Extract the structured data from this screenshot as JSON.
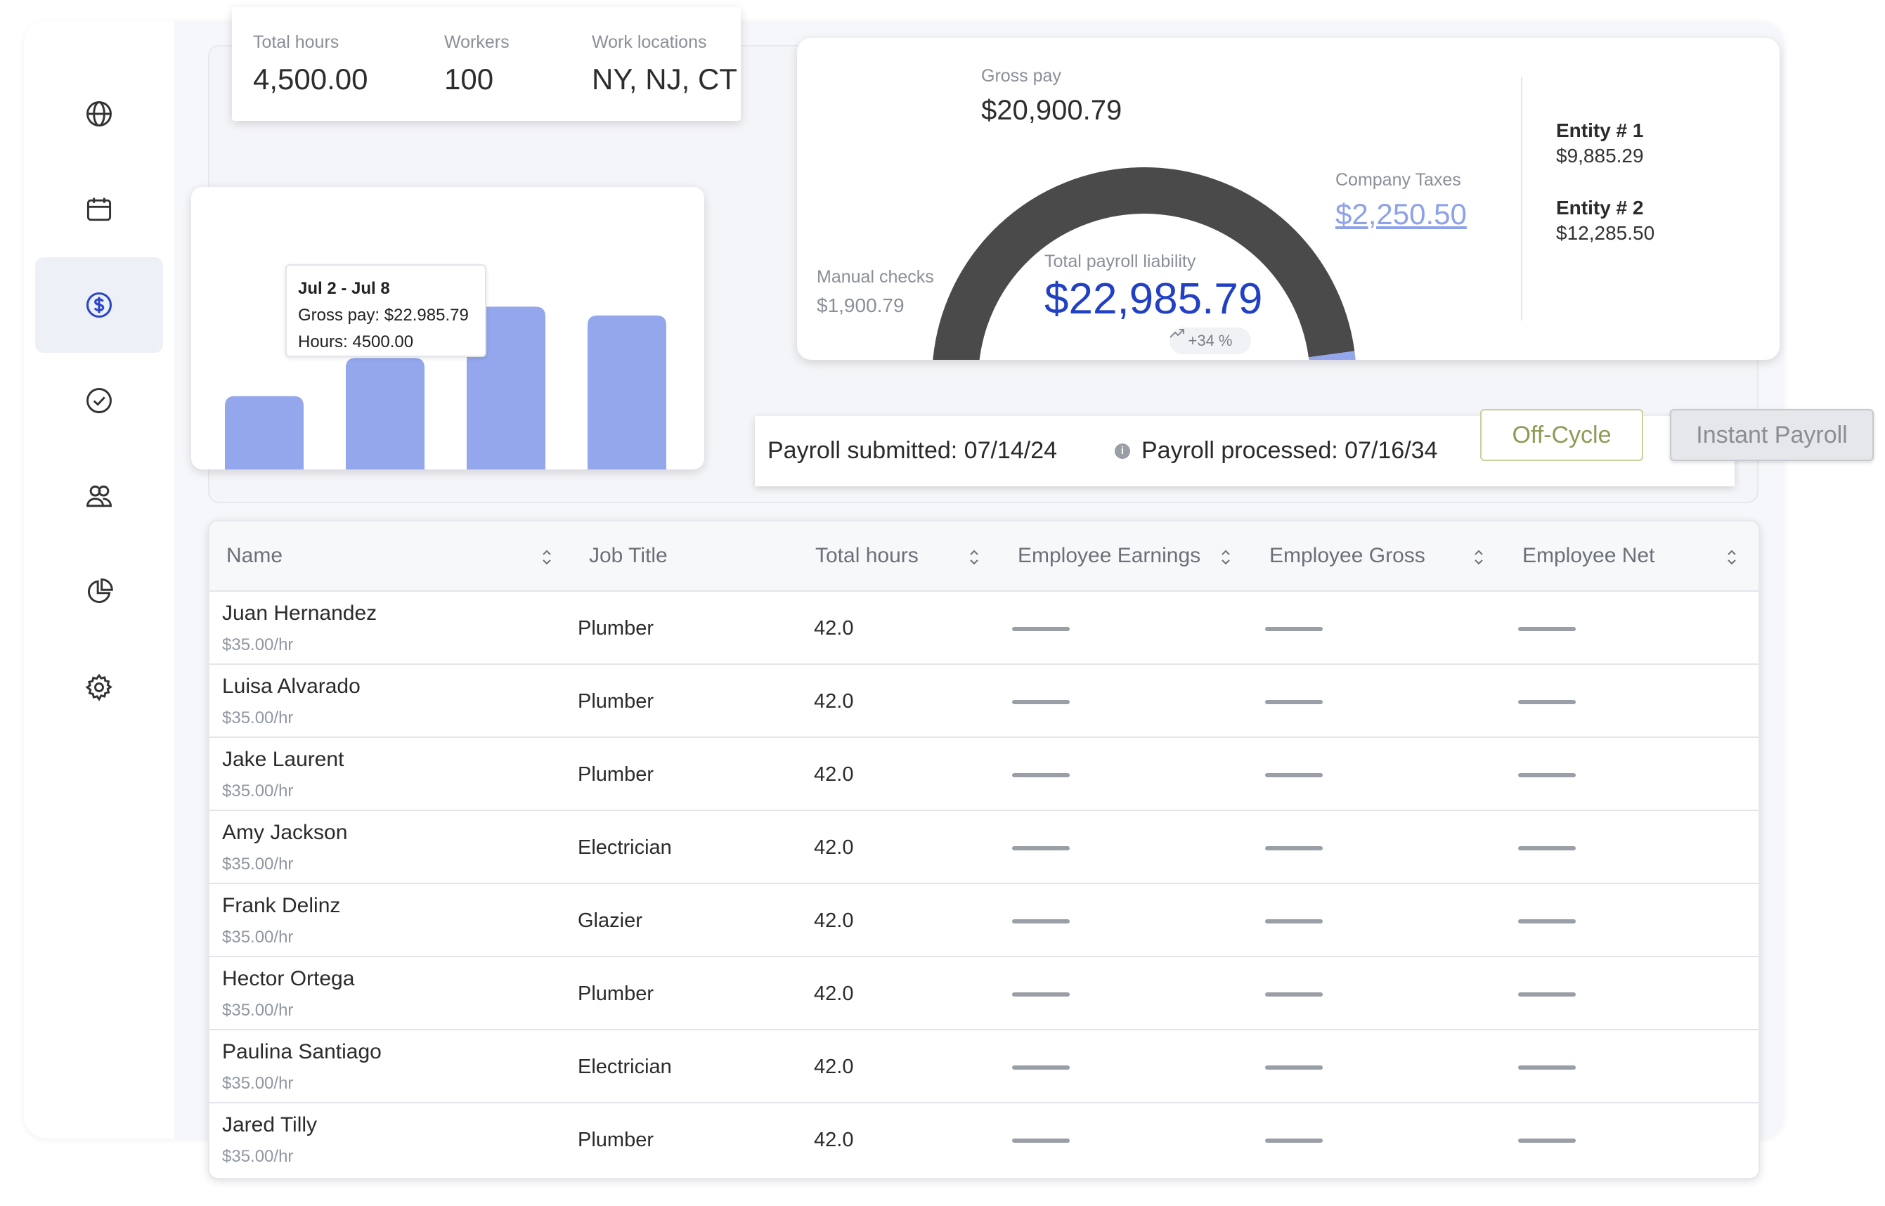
{
  "sidebar": {
    "items": [
      {
        "icon": "globe-icon",
        "active": false
      },
      {
        "icon": "calendar-icon",
        "active": false
      },
      {
        "icon": "dollar-icon",
        "active": true
      },
      {
        "icon": "check-circle-icon",
        "active": false
      },
      {
        "icon": "users-icon",
        "active": false
      },
      {
        "icon": "pie-chart-icon",
        "active": false
      },
      {
        "icon": "gear-icon",
        "active": false
      }
    ]
  },
  "stats": {
    "total_hours_label": "Total hours",
    "total_hours": "4,500.00",
    "workers_label": "Workers",
    "workers": "100",
    "locations_label": "Work locations",
    "locations": "NY, NJ, CT"
  },
  "bar_chart": {
    "tooltip": {
      "title": "Jul 2 - Jul 8",
      "gross_pay": "Gross pay: $22.985.79",
      "hours": "Hours: 4500.00"
    }
  },
  "chart_data": {
    "type": "bar",
    "categories": [
      "",
      "",
      "",
      ""
    ],
    "values": [
      1.0,
      1.52,
      2.22,
      2.1
    ],
    "title": "",
    "xlabel": "",
    "ylabel": "",
    "ylim": [
      0,
      2.3
    ],
    "grid": false,
    "color": "#94a6ec"
  },
  "payroll_summary": {
    "gross_pay_label": "Gross pay",
    "gross_pay": "$20,900.79",
    "company_taxes_label": "Company Taxes",
    "company_taxes": "$2,250.50",
    "manual_checks_label": "Manual checks",
    "manual_checks": "$1,900.79",
    "total_liability_label": "Total payroll liability",
    "total_liability": "$22,985.79",
    "trend": "+34 %",
    "segments": [
      {
        "name": "Manual checks",
        "value": 1900.79,
        "color": "#8a8a8a"
      },
      {
        "name": "Gross pay",
        "value": 20900.79,
        "color": "#4a4a4a"
      },
      {
        "name": "Company Taxes",
        "value": 2250.5,
        "color": "#94a6ec"
      }
    ],
    "entities": [
      {
        "name": "Entity # 1",
        "value": "$9,885.29"
      },
      {
        "name": "Entity # 2",
        "value": "$12,285.50"
      }
    ]
  },
  "status": {
    "submitted": "Payroll submitted: 07/14/24",
    "processed": "Payroll processed: 07/16/34",
    "info_glyph": "i"
  },
  "actions": {
    "off_cycle": "Off-Cycle",
    "instant_payroll": "Instant Payroll"
  },
  "table": {
    "headers": {
      "name": "Name",
      "job_title": "Job Title",
      "total_hours": "Total hours",
      "earnings": "Employee Earnings",
      "gross": "Employee Gross",
      "net": "Employee Net"
    },
    "rows": [
      {
        "name": "Juan Hernandez",
        "rate": "$35.00/hr",
        "job": "Plumber",
        "hours": "42.0"
      },
      {
        "name": "Luisa Alvarado",
        "rate": "$35.00/hr",
        "job": "Plumber",
        "hours": "42.0"
      },
      {
        "name": "Jake Laurent",
        "rate": "$35.00/hr",
        "job": "Plumber",
        "hours": "42.0"
      },
      {
        "name": "Amy Jackson",
        "rate": "$35.00/hr",
        "job": "Electrician",
        "hours": "42.0"
      },
      {
        "name": "Frank Delinz",
        "rate": "$35.00/hr",
        "job": "Glazier",
        "hours": "42.0"
      },
      {
        "name": "Hector Ortega",
        "rate": "$35.00/hr",
        "job": "Plumber",
        "hours": "42.0"
      },
      {
        "name": "Paulina Santiago",
        "rate": "$35.00/hr",
        "job": "Electrician",
        "hours": "42.0"
      },
      {
        "name": "Jared Tilly",
        "rate": "$35.00/hr",
        "job": "Plumber",
        "hours": "42.0"
      }
    ]
  }
}
